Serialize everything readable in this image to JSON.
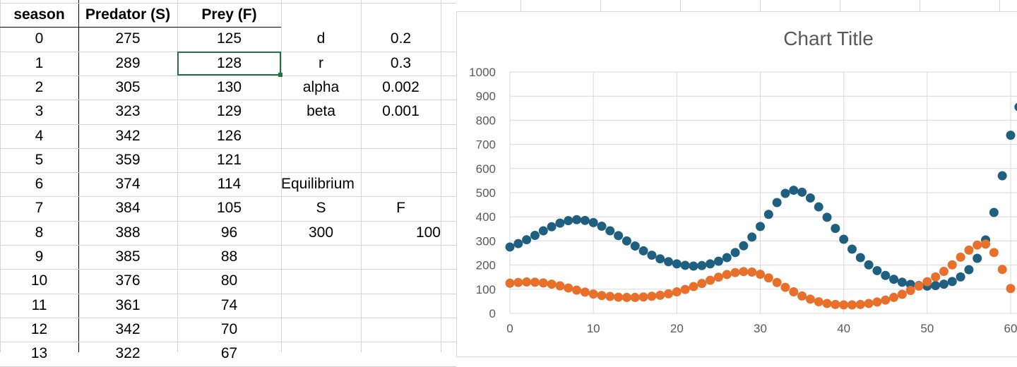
{
  "sheet": {
    "headers": {
      "season": "season",
      "predator": "Predator (S)",
      "prey": "Prey (F)"
    },
    "rows": [
      [
        "0",
        "275",
        "125"
      ],
      [
        "1",
        "289",
        "128"
      ],
      [
        "2",
        "305",
        "130"
      ],
      [
        "3",
        "323",
        "129"
      ],
      [
        "4",
        "342",
        "126"
      ],
      [
        "5",
        "359",
        "121"
      ],
      [
        "6",
        "374",
        "114"
      ],
      [
        "7",
        "384",
        "105"
      ],
      [
        "8",
        "388",
        "96"
      ],
      [
        "9",
        "385",
        "88"
      ],
      [
        "10",
        "376",
        "80"
      ],
      [
        "11",
        "361",
        "74"
      ],
      [
        "12",
        "342",
        "70"
      ],
      [
        "13",
        "322",
        "67"
      ]
    ],
    "params": [
      {
        "name": "d",
        "value": "0.2"
      },
      {
        "name": "r",
        "value": "0.3"
      },
      {
        "name": "alpha",
        "value": "0.002"
      },
      {
        "name": "beta",
        "value": "0.001"
      }
    ],
    "equilibrium": {
      "label": "Equilibrium",
      "s_label": "S",
      "f_label": "F",
      "s_value": "300",
      "f_value": "100"
    },
    "selected_cell": "C3"
  },
  "colors": {
    "predator": "#1f5f7f",
    "prey": "#e8702a",
    "gridline": "#d4d4d4",
    "selection": "#217346"
  },
  "chart_data": {
    "type": "scatter",
    "title": "Chart Title",
    "xlim": [
      0,
      60
    ],
    "ylim": [
      0,
      1000
    ],
    "xticks": [
      0,
      10,
      20,
      30,
      40,
      50,
      60
    ],
    "yticks": [
      0,
      100,
      200,
      300,
      400,
      500,
      600,
      700,
      800,
      900,
      1000
    ],
    "grid": true,
    "series": [
      {
        "color": "#1f5f7f",
        "x": [
          0,
          1,
          2,
          3,
          4,
          5,
          6,
          7,
          8,
          9,
          10,
          11,
          12,
          13,
          14,
          15,
          16,
          17,
          18,
          19,
          20,
          21,
          22,
          23,
          24,
          25,
          26,
          27,
          28,
          29,
          30,
          31,
          32,
          33,
          34,
          35,
          36,
          37,
          38,
          39,
          40,
          41,
          42,
          43,
          44,
          45,
          46,
          47,
          48,
          49,
          50,
          51,
          52,
          53,
          54,
          55,
          56,
          57,
          58,
          59,
          60,
          61
        ],
        "values": [
          275,
          289,
          305,
          323,
          342,
          359,
          374,
          384,
          388,
          385,
          376,
          361,
          342,
          322,
          300,
          279,
          259,
          241,
          226,
          214,
          205,
          199,
          196,
          198,
          205,
          216,
          231,
          252,
          280,
          316,
          360,
          410,
          459,
          497,
          510,
          502,
          478,
          441,
          398,
          352,
          307,
          266,
          231,
          201,
          177,
          157,
          141,
          129,
          120,
          115,
          113,
          115,
          121,
          132,
          151,
          181,
          228,
          304,
          418,
          570,
          738,
          855
        ]
      },
      {
        "color": "#e8702a",
        "x": [
          0,
          1,
          2,
          3,
          4,
          5,
          6,
          7,
          8,
          9,
          10,
          11,
          12,
          13,
          14,
          15,
          16,
          17,
          18,
          19,
          20,
          21,
          22,
          23,
          24,
          25,
          26,
          27,
          28,
          29,
          30,
          31,
          32,
          33,
          34,
          35,
          36,
          37,
          38,
          39,
          40,
          41,
          42,
          43,
          44,
          45,
          46,
          47,
          48,
          49,
          50,
          51,
          52,
          53,
          54,
          55,
          56,
          57,
          58,
          59,
          60
        ],
        "values": [
          125,
          128,
          130,
          129,
          126,
          121,
          114,
          105,
          96,
          88,
          80,
          74,
          70,
          67,
          66,
          66,
          68,
          71,
          75,
          81,
          89,
          99,
          111,
          124,
          137,
          150,
          161,
          169,
          173,
          171,
          162,
          147,
          128,
          108,
          89,
          72,
          59,
          48,
          41,
          37,
          35,
          35,
          37,
          41,
          47,
          55,
          66,
          79,
          95,
          113,
          131,
          151,
          174,
          201,
          233,
          262,
          283,
          287,
          252,
          182,
          103
        ]
      }
    ]
  }
}
